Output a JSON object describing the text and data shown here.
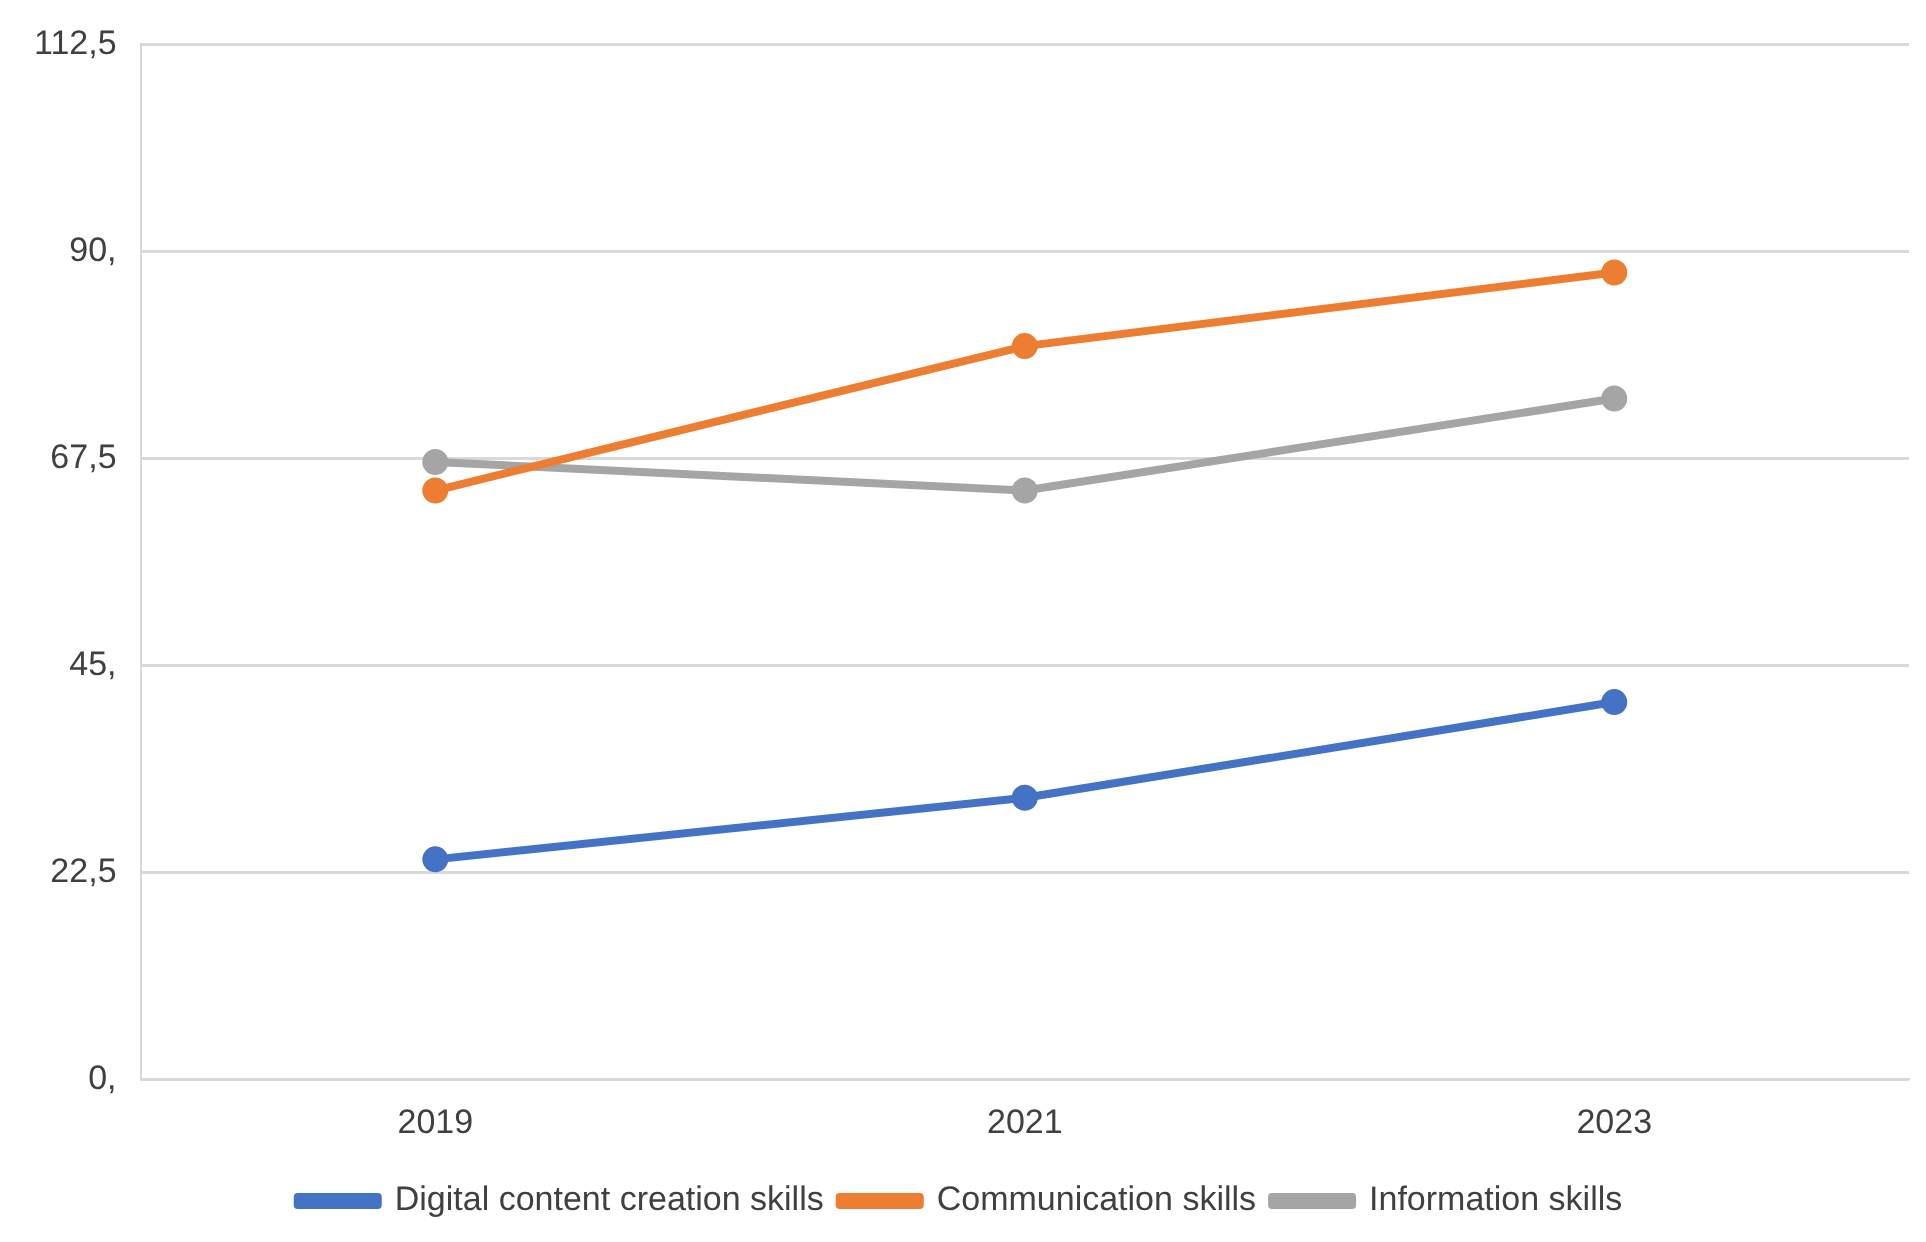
{
  "chart_data": {
    "type": "line",
    "categories": [
      "2019",
      "2021",
      "2023"
    ],
    "series": [
      {
        "name": "Digital content creation skills",
        "color": "#4472c4",
        "values": [
          23.9,
          30.6,
          41.0
        ]
      },
      {
        "name": "Communication skills",
        "color": "#ed7d31",
        "values": [
          64.0,
          79.7,
          87.7
        ]
      },
      {
        "name": "Information skills",
        "color": "#a5a5a5",
        "values": [
          67.1,
          64.0,
          74.0
        ]
      }
    ],
    "ylim": [
      0,
      112.5
    ],
    "yticks": [
      {
        "value": 0,
        "label": "0,"
      },
      {
        "value": 22.5,
        "label": "22,5"
      },
      {
        "value": 45,
        "label": "45,"
      },
      {
        "value": 67.5,
        "label": "67,5"
      },
      {
        "value": 90,
        "label": "90,"
      },
      {
        "value": 112.5,
        "label": "112,5"
      }
    ],
    "grid": "y",
    "legend": "bottom",
    "marker": "circle",
    "line_style": "solid"
  }
}
